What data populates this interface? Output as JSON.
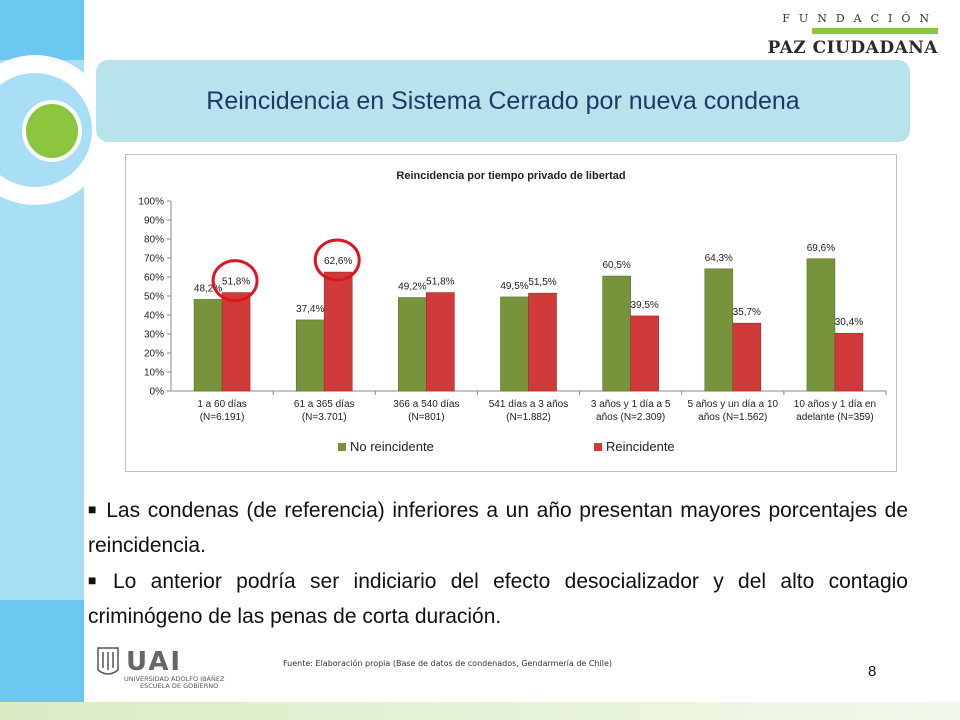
{
  "logo": {
    "line1": "FUNDACIÓN",
    "line2": "PAZ CIUDADANA"
  },
  "slide_title": "Reincidencia en Sistema Cerrado por nueva condena",
  "chart_data": {
    "type": "bar",
    "title": "Reincidencia por tiempo privado de libertad",
    "xlabel": "",
    "ylabel": "",
    "ylim": [
      0,
      100
    ],
    "yticks": [
      "0%",
      "10%",
      "20%",
      "30%",
      "40%",
      "50%",
      "60%",
      "70%",
      "80%",
      "90%",
      "100%"
    ],
    "categories": [
      [
        "1 a 60 días",
        "(N=6.191)"
      ],
      [
        "61 a 365 días",
        "(N=3.701)"
      ],
      [
        "366 a 540 días",
        "(N=801)"
      ],
      [
        "541 días a 3 años",
        "(N=1.882)"
      ],
      [
        "3 años y 1 día a 5",
        "años (N=2.309)"
      ],
      [
        "5 años y un día a 10",
        "años (N=1.562)"
      ],
      [
        "10 años y 1 día en",
        "adelante (N=359)"
      ]
    ],
    "series": [
      {
        "name": "No reincidente",
        "color": "#77933c",
        "values": [
          48.2,
          37.4,
          49.2,
          49.5,
          60.5,
          64.3,
          69.6
        ],
        "labels": [
          "48,2%",
          "37,4%",
          "49,2%",
          "49,5%",
          "60,5%",
          "64,3%",
          "69,6%"
        ]
      },
      {
        "name": "Reincidente",
        "color": "#d03a3a",
        "values": [
          51.8,
          62.6,
          51.8,
          51.5,
          39.5,
          35.7,
          30.4
        ],
        "labels": [
          "51,8%",
          "62,6%",
          "51,8%",
          "51,5%",
          "39,5%",
          "35,7%",
          "30,4%"
        ]
      }
    ],
    "legend": "bottom",
    "highlighted": [
      0,
      1
    ],
    "grid": false
  },
  "bullets": [
    "Las condenas (de referencia) inferiores a un año presentan mayores porcentajes de reincidencia.",
    "Lo anterior podría ser indiciario del efecto desocializador y del alto contagio criminógeno de las penas de corta duración."
  ],
  "source": "Fuente: Elaboración propia (Base de datos de condenados, Gendarmería de Chile)",
  "page_number": "8",
  "footer_logo": {
    "brand": "UAI",
    "line1": "UNIVERSIDAD ADOLFO IBÁÑEZ",
    "line2": "ESCUELA DE GOBIERNO"
  }
}
